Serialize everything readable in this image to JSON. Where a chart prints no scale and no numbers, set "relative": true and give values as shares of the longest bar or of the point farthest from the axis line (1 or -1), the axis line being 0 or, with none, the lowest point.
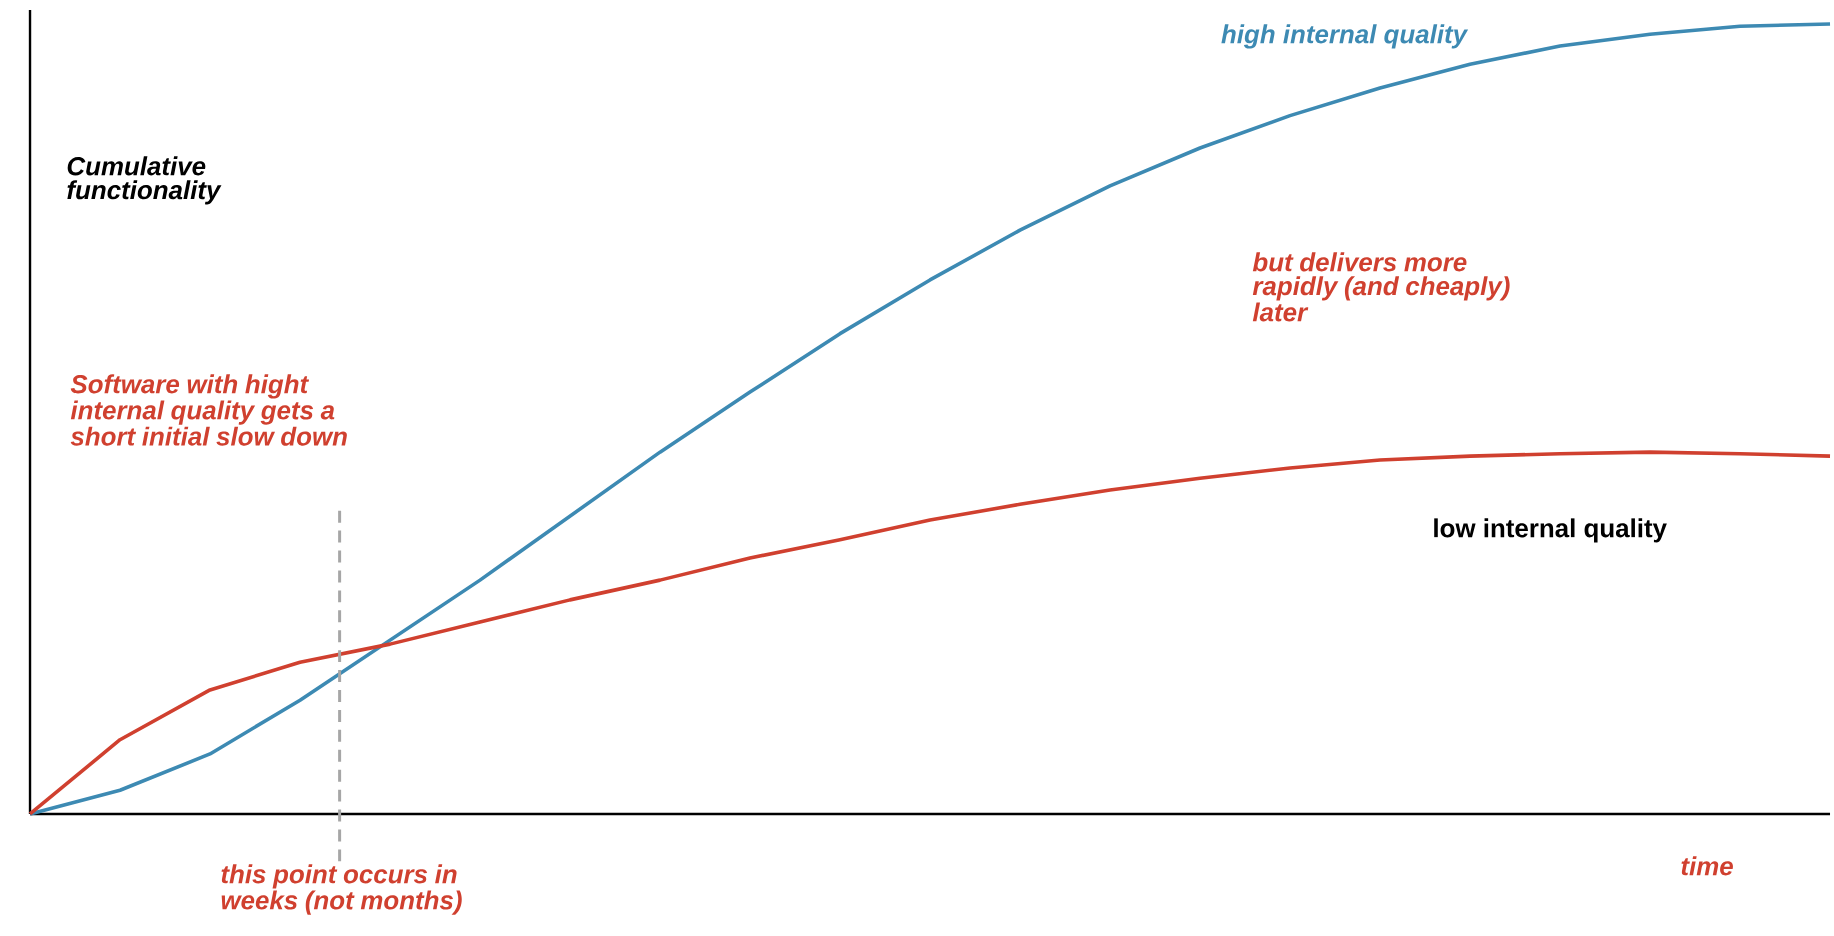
{
  "chart_data": {
    "type": "line",
    "relative": true,
    "xlabel": "time",
    "ylabel": "Cumulative functionality",
    "categories": [
      null,
      null,
      null,
      null,
      null,
      null,
      null,
      null,
      null,
      null,
      null,
      null,
      null,
      null,
      null,
      null,
      null,
      null,
      null,
      null,
      null
    ],
    "series": [
      {
        "name": "high internal quality",
        "color": "#3d8ab3",
        "values": [
          0,
          0.03,
          0.076,
          0.144,
          0.22,
          0.296,
          0.377,
          0.458,
          0.534,
          0.608,
          0.676,
          0.739,
          0.795,
          0.843,
          0.884,
          0.919,
          0.949,
          0.972,
          0.987,
          0.997,
          1
        ]
      },
      {
        "name": "low internal quality",
        "color": "#d0402f",
        "values": [
          0,
          0.094,
          0.157,
          0.192,
          0.215,
          0.243,
          0.271,
          0.296,
          0.324,
          0.347,
          0.372,
          0.392,
          0.41,
          0.425,
          0.438,
          0.448,
          0.453,
          0.456,
          0.458,
          0.456,
          0.453
        ]
      }
    ],
    "annotations": [
      "but delivers more rapidly (and cheaply) later",
      "Software with hight internal quality gets a short initial slow down",
      "this point occurs in weeks (not months)"
    ],
    "marker": "none"
  }
}
